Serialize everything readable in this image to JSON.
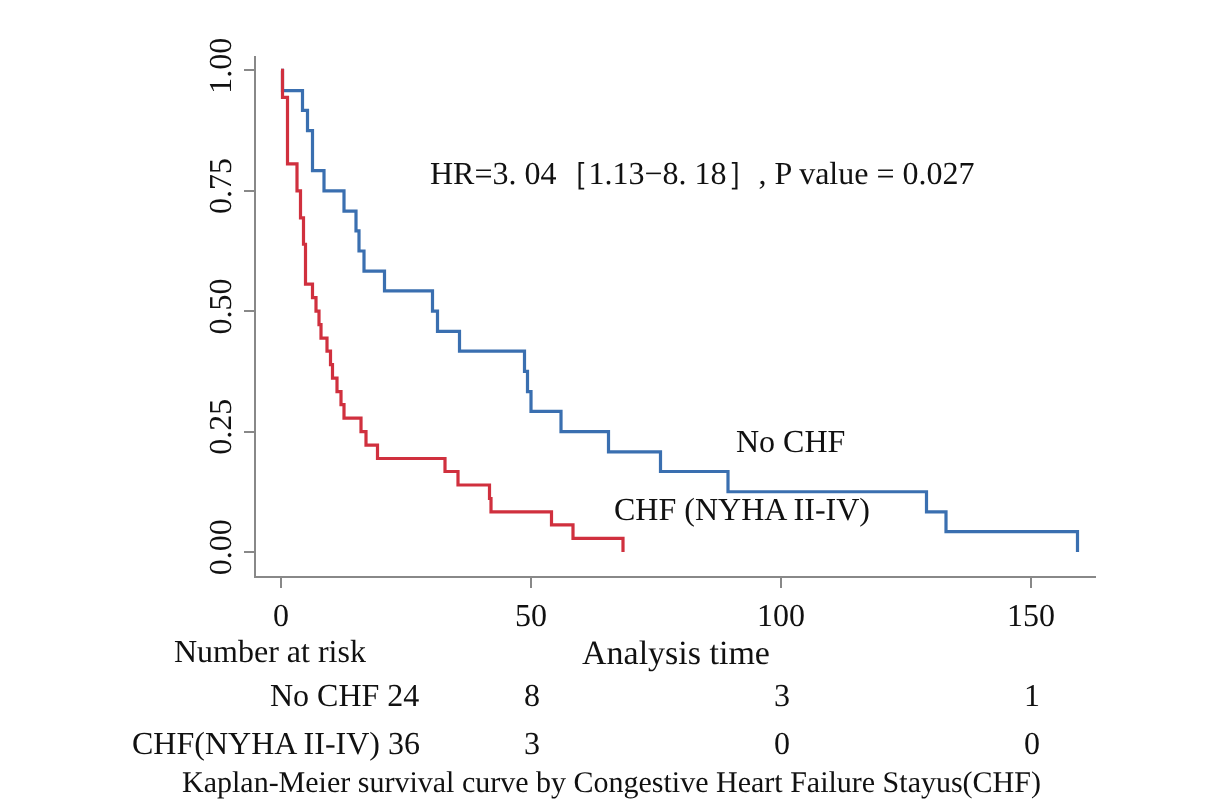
{
  "chart_data": {
    "type": "step",
    "xlabel": "Analysis time",
    "series": [
      {
        "name": "No CHF",
        "color": "#3a6fb0",
        "x": [
          0,
          0.3,
          4.3,
          5.3,
          6.3,
          8.6,
          12.6,
          15,
          15.6,
          16.6,
          20.7,
          30.3,
          31.3,
          35.7,
          48.7,
          49.3,
          50,
          56,
          65.5,
          75.9,
          89.4,
          129.1,
          133,
          159.3
        ],
        "values": [
          1,
          0.958,
          0.917,
          0.875,
          0.792,
          0.75,
          0.708,
          0.667,
          0.625,
          0.583,
          0.542,
          0.5,
          0.458,
          0.417,
          0.375,
          0.333,
          0.292,
          0.25,
          0.208,
          0.167,
          0.125,
          0.083,
          0.042,
          0
        ]
      },
      {
        "name": "CHF (NYHA II-IV)",
        "color": "#d0303e",
        "x": [
          0,
          0.3,
          1.3,
          3.2,
          3.9,
          4.5,
          4.9,
          6.3,
          7,
          7.6,
          8,
          9.2,
          9.9,
          10.3,
          11.2,
          12,
          12.6,
          16,
          17,
          19.3,
          32.8,
          35.4,
          41.7,
          42,
          54.1,
          58.4,
          68.4
        ],
        "values": [
          1,
          0.944,
          0.806,
          0.75,
          0.694,
          0.639,
          0.556,
          0.528,
          0.5,
          0.472,
          0.444,
          0.417,
          0.389,
          0.361,
          0.333,
          0.306,
          0.278,
          0.25,
          0.222,
          0.194,
          0.167,
          0.139,
          0.111,
          0.083,
          0.056,
          0.028,
          0
        ]
      }
    ],
    "xlim": [
      -5,
      163
    ],
    "xticks": [
      0,
      50,
      100,
      150
    ],
    "ylim": [
      -0.05,
      1.03
    ],
    "yticks": [
      {
        "value": 0,
        "label": "0.00"
      },
      {
        "value": 0.25,
        "label": "0.25"
      },
      {
        "value": 0.5,
        "label": "0.50"
      },
      {
        "value": 0.75,
        "label": "0.75"
      },
      {
        "value": 1,
        "label": "1.00"
      }
    ],
    "legend": false,
    "marker": "none",
    "line_style": "solid",
    "annotations": [
      "HR=3. 04［1.13−8. 18］, P value = 0.027",
      "Number at risk",
      "No CHF 24",
      "8",
      "3",
      "1",
      "CHF(NYHA II-IV) 36",
      "3",
      "0",
      "0",
      "Kaplan-Meier survival curve by Congestive Heart Failure Stayus(CHF)"
    ]
  }
}
